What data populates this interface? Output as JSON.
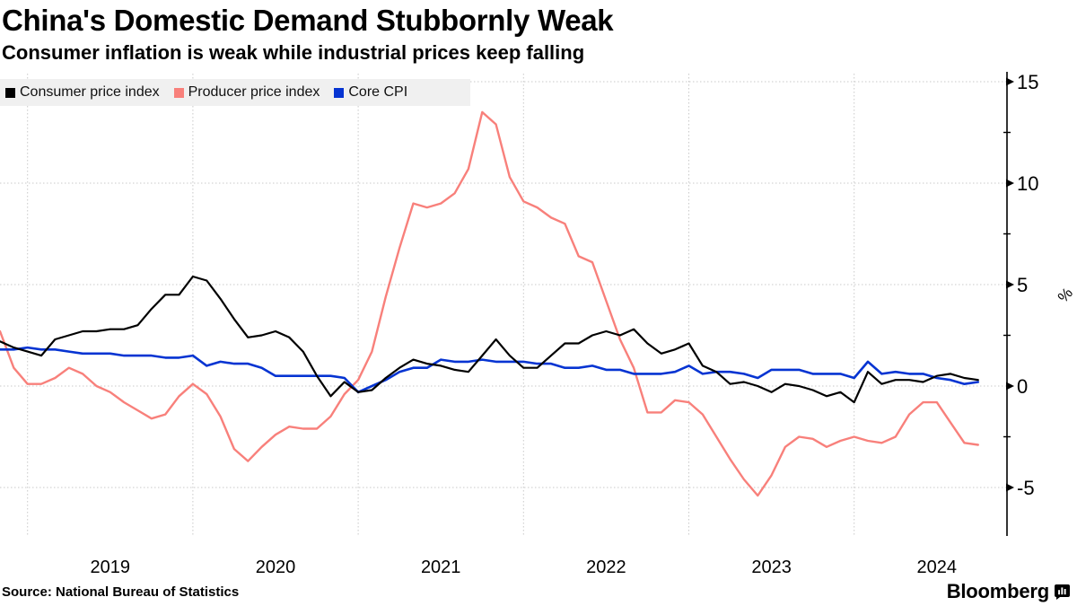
{
  "header": {
    "title": "China's Domestic Demand Stubbornly Weak",
    "subtitle": "Consumer inflation is weak while industrial prices keep falling"
  },
  "footer": {
    "source": "Source: National Bureau of Statistics",
    "brand": "Bloomberg",
    "brand_icon": "bloomberg-terminal-icon"
  },
  "colors": {
    "cpi": "#000000",
    "ppi": "#f8807b",
    "core_cpi": "#0634d2",
    "gridline": "#c9c9c9",
    "legend_bg": "#f0f0f0",
    "axis": "#000000"
  },
  "chart_data": {
    "type": "line",
    "title": "China's Domestic Demand Stubbornly Weak",
    "subtitle": "Consumer inflation is weak while industrial prices keep falling",
    "ylabel": "%",
    "xlabel": "",
    "grid": true,
    "legend_position": "top-left",
    "y_axis_side": "right",
    "ylim": [
      -7.4,
      15.5
    ],
    "y_ticks": [
      15,
      10,
      5,
      0,
      -5
    ],
    "y_tick_labels": [
      "15",
      "10",
      "5",
      "0",
      "-5"
    ],
    "y_minor_ticks": [
      12.5,
      7.5,
      2.5,
      -2.5
    ],
    "x_tick_labels": [
      "2019",
      "2020",
      "2021",
      "2022",
      "2023",
      "2024"
    ],
    "x_unit": "month",
    "x": [
      "2018-11",
      "2018-12",
      "2019-01",
      "2019-02",
      "2019-03",
      "2019-04",
      "2019-05",
      "2019-06",
      "2019-07",
      "2019-08",
      "2019-09",
      "2019-10",
      "2019-11",
      "2019-12",
      "2020-01",
      "2020-02",
      "2020-03",
      "2020-04",
      "2020-05",
      "2020-06",
      "2020-07",
      "2020-08",
      "2020-09",
      "2020-10",
      "2020-11",
      "2020-12",
      "2021-01",
      "2021-02",
      "2021-03",
      "2021-04",
      "2021-05",
      "2021-06",
      "2021-07",
      "2021-08",
      "2021-09",
      "2021-10",
      "2021-11",
      "2021-12",
      "2022-01",
      "2022-02",
      "2022-03",
      "2022-04",
      "2022-05",
      "2022-06",
      "2022-07",
      "2022-08",
      "2022-09",
      "2022-10",
      "2022-11",
      "2022-12",
      "2023-01",
      "2023-02",
      "2023-03",
      "2023-04",
      "2023-05",
      "2023-06",
      "2023-07",
      "2023-08",
      "2023-09",
      "2023-10",
      "2023-11",
      "2023-12",
      "2024-01",
      "2024-02",
      "2024-03",
      "2024-04",
      "2024-05",
      "2024-06",
      "2024-07",
      "2024-08",
      "2024-09",
      "2024-10"
    ],
    "series": [
      {
        "name": "Consumer price index",
        "color": "#000000",
        "values": [
          2.2,
          1.9,
          1.7,
          1.5,
          2.3,
          2.5,
          2.7,
          2.7,
          2.8,
          2.8,
          3.0,
          3.8,
          4.5,
          4.5,
          5.4,
          5.2,
          4.3,
          3.3,
          2.4,
          2.5,
          2.7,
          2.4,
          1.7,
          0.5,
          -0.5,
          0.2,
          -0.3,
          -0.2,
          0.4,
          0.9,
          1.3,
          1.1,
          1.0,
          0.8,
          0.7,
          1.5,
          2.3,
          1.5,
          0.9,
          0.9,
          1.5,
          2.1,
          2.1,
          2.5,
          2.7,
          2.5,
          2.8,
          2.1,
          1.6,
          1.8,
          2.1,
          1.0,
          0.7,
          0.1,
          0.2,
          0.0,
          -0.3,
          0.1,
          0.0,
          -0.2,
          -0.5,
          -0.3,
          -0.8,
          0.7,
          0.1,
          0.3,
          0.3,
          0.2,
          0.5,
          0.6,
          0.4,
          0.3
        ]
      },
      {
        "name": "Producer price index",
        "color": "#f8807b",
        "values": [
          2.7,
          0.9,
          0.1,
          0.1,
          0.4,
          0.9,
          0.6,
          0.0,
          -0.3,
          -0.8,
          -1.2,
          -1.6,
          -1.4,
          -0.5,
          0.1,
          -0.4,
          -1.5,
          -3.1,
          -3.7,
          -3.0,
          -2.4,
          -2.0,
          -2.1,
          -2.1,
          -1.5,
          -0.4,
          0.3,
          1.7,
          4.4,
          6.8,
          9.0,
          8.8,
          9.0,
          9.5,
          10.7,
          13.5,
          12.9,
          10.3,
          9.1,
          8.8,
          8.3,
          8.0,
          6.4,
          6.1,
          4.2,
          2.3,
          0.9,
          -1.3,
          -1.3,
          -0.7,
          -0.8,
          -1.4,
          -2.5,
          -3.6,
          -4.6,
          -5.4,
          -4.4,
          -3.0,
          -2.5,
          -2.6,
          -3.0,
          -2.7,
          -2.5,
          -2.7,
          -2.8,
          -2.5,
          -1.4,
          -0.8,
          -0.8,
          -1.8,
          -2.8,
          -2.9
        ]
      },
      {
        "name": "Core CPI",
        "color": "#0634d2",
        "values": [
          1.8,
          1.8,
          1.9,
          1.8,
          1.8,
          1.7,
          1.6,
          1.6,
          1.6,
          1.5,
          1.5,
          1.5,
          1.4,
          1.4,
          1.5,
          1.0,
          1.2,
          1.1,
          1.1,
          0.9,
          0.5,
          0.5,
          0.5,
          0.5,
          0.5,
          0.4,
          -0.3,
          0.0,
          0.3,
          0.7,
          0.9,
          0.9,
          1.3,
          1.2,
          1.2,
          1.3,
          1.2,
          1.2,
          1.2,
          1.1,
          1.1,
          0.9,
          0.9,
          1.0,
          0.8,
          0.8,
          0.6,
          0.6,
          0.6,
          0.7,
          1.0,
          0.6,
          0.7,
          0.7,
          0.6,
          0.4,
          0.8,
          0.8,
          0.8,
          0.6,
          0.6,
          0.6,
          0.4,
          1.2,
          0.6,
          0.7,
          0.6,
          0.6,
          0.4,
          0.3,
          0.1,
          0.2
        ]
      }
    ]
  }
}
